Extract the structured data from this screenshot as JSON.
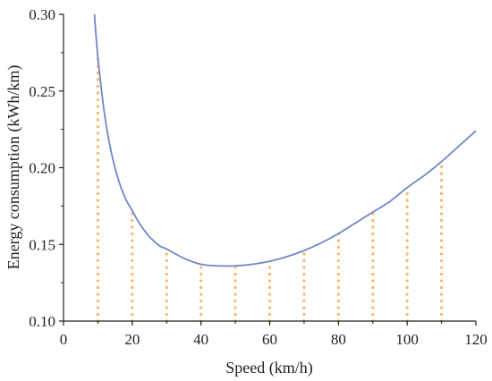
{
  "chart_data": {
    "type": "line",
    "title": "",
    "xlabel": "Speed (km/h)",
    "ylabel": "Energy consumption (kWh/km)",
    "xlim": [
      0,
      120
    ],
    "ylim": [
      0.1,
      0.3
    ],
    "x_ticks": [
      0,
      20,
      40,
      60,
      80,
      100,
      120
    ],
    "y_ticks": [
      0.1,
      0.15,
      0.2,
      0.25,
      0.3
    ],
    "x_tick_labels": [
      "0",
      "20",
      "40",
      "60",
      "80",
      "100",
      "120"
    ],
    "y_tick_labels": [
      "0.10",
      "0.15",
      "0.20",
      "0.25",
      "0.30"
    ],
    "grid": false,
    "legend": "none",
    "curve": {
      "color": "#6f86c6",
      "x": [
        9,
        10,
        12,
        14,
        16,
        18,
        20,
        22,
        25,
        28,
        30,
        35,
        40,
        45,
        50,
        55,
        60,
        65,
        70,
        75,
        80,
        85,
        90,
        95,
        100,
        105,
        110,
        115,
        120
      ],
      "y": [
        0.3,
        0.272,
        0.234,
        0.209,
        0.192,
        0.18,
        0.172,
        0.164,
        0.155,
        0.149,
        0.147,
        0.141,
        0.137,
        0.136,
        0.136,
        0.137,
        0.139,
        0.142,
        0.146,
        0.151,
        0.157,
        0.164,
        0.171,
        0.178,
        0.187,
        0.195,
        0.204,
        0.214,
        0.224
      ]
    },
    "markers": {
      "color": "#f6b86a",
      "style": "dotted-vertical",
      "x": [
        10,
        20,
        30,
        40,
        50,
        60,
        70,
        80,
        90,
        100,
        110
      ],
      "y": [
        0.272,
        0.172,
        0.147,
        0.137,
        0.136,
        0.139,
        0.146,
        0.157,
        0.171,
        0.187,
        0.204
      ]
    }
  }
}
